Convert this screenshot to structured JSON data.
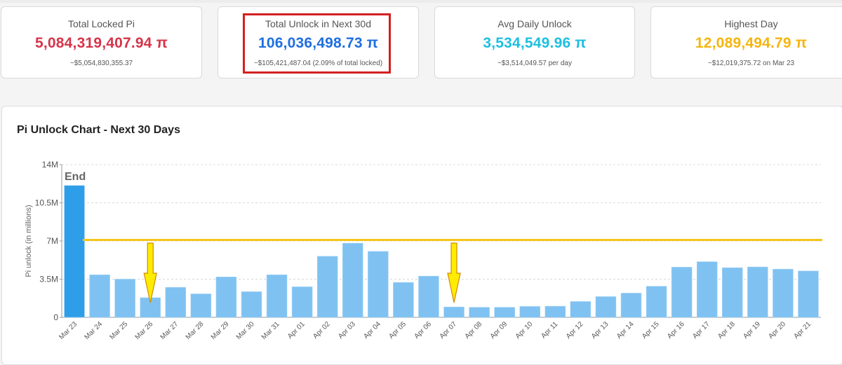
{
  "cards": [
    {
      "label": "Total Locked Pi",
      "value": "5,084,319,407.94 π",
      "sub": "~$5,054,830,355.37",
      "color": "#d6344a"
    },
    {
      "label": "Total Unlock in Next 30d",
      "value": "106,036,498.73 π",
      "sub": "~$105,421,487.04 (2.09% of total locked)",
      "color": "#1f6fe0"
    },
    {
      "label": "Avg Daily Unlock",
      "value": "3,534,549.96 π",
      "sub": "~$3,514,049.57 per day",
      "color": "#1ebfe0"
    },
    {
      "label": "Highest Day",
      "value": "12,089,494.79 π",
      "sub": "~$12,019,375.72 on Mar 23",
      "color": "#f5b50f"
    }
  ],
  "chart": {
    "title": "Pi Unlock Chart - Next 30 Days"
  },
  "chart_data": {
    "type": "bar",
    "title": "Pi Unlock Chart - Next 30 Days",
    "ylabel": "Pi unlock (in millions)",
    "xlabel": "",
    "ylim": [
      0,
      14000000
    ],
    "yticks": [
      0,
      3500000,
      7000000,
      10500000,
      14000000
    ],
    "ytick_labels": [
      "0",
      "3.5M",
      "7M",
      "10.5M",
      "14M"
    ],
    "grid": true,
    "categories": [
      "Mar 23",
      "Mar 24",
      "Mar 25",
      "Mar 26",
      "Mar 27",
      "Mar 28",
      "Mar 29",
      "Mar 30",
      "Mar 31",
      "Apr 01",
      "Apr 02",
      "Apr 03",
      "Apr 04",
      "Apr 05",
      "Apr 06",
      "Apr 07",
      "Apr 08",
      "Apr 09",
      "Apr 10",
      "Apr 11",
      "Apr 12",
      "Apr 13",
      "Apr 14",
      "Apr 15",
      "Apr 16",
      "Apr 17",
      "Apr 18",
      "Apr 19",
      "Apr 20",
      "Apr 21"
    ],
    "values": [
      12089494.79,
      3900000,
      3500000,
      1800000,
      2750000,
      2150000,
      3700000,
      2350000,
      3900000,
      2800000,
      5600000,
      6800000,
      6050000,
      3200000,
      3780000,
      950000,
      920000,
      920000,
      1000000,
      1020000,
      1450000,
      1900000,
      2220000,
      2850000,
      4600000,
      5100000,
      4550000,
      4620000,
      4420000,
      4250000
    ],
    "reference_line": 7100000,
    "reference_color": "#f5c518",
    "annotation": "End",
    "arrows_at": [
      "Mar 26",
      "Apr 07"
    ],
    "bar_color": "#7fc2f2",
    "highlight_bar_color": "#2f9ee8"
  }
}
